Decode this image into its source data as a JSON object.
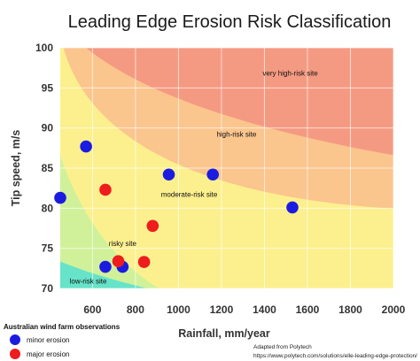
{
  "chart_data": {
    "type": "scatter",
    "title": "Leading Edge Erosion Risk Classification",
    "xlabel": "Rainfall, mm/year",
    "ylabel": "Tip speed, m/s",
    "xlim": [
      450,
      2000
    ],
    "ylim": [
      70,
      100
    ],
    "x_ticks": [
      "600",
      "800",
      "1000",
      "1200",
      "1400",
      "1600",
      "1800",
      "2000"
    ],
    "x_tick_values": [
      600,
      800,
      1000,
      1200,
      1400,
      1600,
      1800,
      2000
    ],
    "y_ticks": [
      "70",
      "75",
      "80",
      "85",
      "90",
      "95",
      "100"
    ],
    "y_tick_values": [
      70,
      75,
      80,
      85,
      90,
      95,
      100
    ],
    "grid": true,
    "zones": [
      {
        "label": "very high-risk site",
        "color": "#f59a82",
        "label_at": [
          1520,
          96.5
        ]
      },
      {
        "label": "high-risk site",
        "color": "#fbc58e",
        "label_at": [
          1270,
          88.9
        ]
      },
      {
        "label": "moderate-risk site",
        "color": "#fcf08e",
        "label_at": [
          1050,
          81.4
        ]
      },
      {
        "label": "risky site",
        "color": "#d0f19a",
        "label_at": [
          740,
          75.3
        ]
      },
      {
        "label": "low-risk site",
        "color": "#66e3c9",
        "label_at": [
          580,
          70.6
        ]
      }
    ],
    "series": [
      {
        "name": "minor erosion",
        "color": "#1c1ce0",
        "points": [
          {
            "x": 450,
            "y": 81.3
          },
          {
            "x": 570,
            "y": 87.7
          },
          {
            "x": 955,
            "y": 84.2
          },
          {
            "x": 1160,
            "y": 84.2
          },
          {
            "x": 1530,
            "y": 80.1
          },
          {
            "x": 660,
            "y": 72.7
          },
          {
            "x": 740,
            "y": 72.7
          }
        ]
      },
      {
        "name": "major erosion",
        "color": "#ee1c1c",
        "points": [
          {
            "x": 660,
            "y": 82.3
          },
          {
            "x": 880,
            "y": 77.8
          },
          {
            "x": 720,
            "y": 73.4
          },
          {
            "x": 840,
            "y": 73.3
          }
        ]
      }
    ],
    "legend": {
      "title": "Australian wind farm observations",
      "position": "bottom-left",
      "items": [
        "minor erosion",
        "major erosion"
      ]
    }
  },
  "credit": {
    "line1": "Adapted from Polytech",
    "line2": "https://www.polytech.com/solutions/elle-leading-edge-protection/"
  }
}
